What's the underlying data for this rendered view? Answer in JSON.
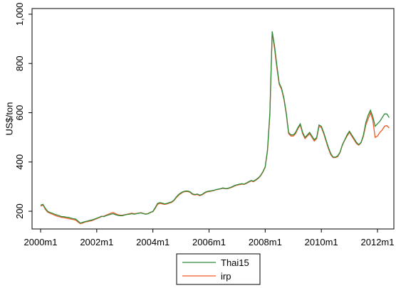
{
  "chart_data": {
    "type": "line",
    "y_label": "US$/ton",
    "x": [
      "2000m1",
      "2000m2",
      "2000m3",
      "2000m4",
      "2000m5",
      "2000m6",
      "2000m7",
      "2000m8",
      "2000m9",
      "2000m10",
      "2000m11",
      "2000m12",
      "2001m1",
      "2001m2",
      "2001m3",
      "2001m4",
      "2001m5",
      "2001m6",
      "2001m7",
      "2001m8",
      "2001m9",
      "2001m10",
      "2001m11",
      "2001m12",
      "2002m1",
      "2002m2",
      "2002m3",
      "2002m4",
      "2002m5",
      "2002m6",
      "2002m7",
      "2002m8",
      "2002m9",
      "2002m10",
      "2002m11",
      "2002m12",
      "2003m1",
      "2003m2",
      "2003m3",
      "2003m4",
      "2003m5",
      "2003m6",
      "2003m7",
      "2003m8",
      "2003m9",
      "2003m10",
      "2003m11",
      "2003m12",
      "2004m1",
      "2004m2",
      "2004m3",
      "2004m4",
      "2004m5",
      "2004m6",
      "2004m7",
      "2004m8",
      "2004m9",
      "2004m10",
      "2004m11",
      "2004m12",
      "2005m1",
      "2005m2",
      "2005m3",
      "2005m4",
      "2005m5",
      "2005m6",
      "2005m7",
      "2005m8",
      "2005m9",
      "2005m10",
      "2005m11",
      "2005m12",
      "2006m1",
      "2006m2",
      "2006m3",
      "2006m4",
      "2006m5",
      "2006m6",
      "2006m7",
      "2006m8",
      "2006m9",
      "2006m10",
      "2006m11",
      "2006m12",
      "2007m1",
      "2007m2",
      "2007m3",
      "2007m4",
      "2007m5",
      "2007m6",
      "2007m7",
      "2007m8",
      "2007m9",
      "2007m10",
      "2007m11",
      "2007m12",
      "2008m1",
      "2008m2",
      "2008m3",
      "2008m4",
      "2008m5",
      "2008m6",
      "2008m7",
      "2008m8",
      "2008m9",
      "2008m10",
      "2008m11",
      "2008m12",
      "2009m1",
      "2009m2",
      "2009m3",
      "2009m4",
      "2009m5",
      "2009m6",
      "2009m7",
      "2009m8",
      "2009m9",
      "2009m10",
      "2009m11",
      "2009m12",
      "2010m1",
      "2010m2",
      "2010m3",
      "2010m4",
      "2010m5",
      "2010m6",
      "2010m7",
      "2010m8",
      "2010m9",
      "2010m10",
      "2010m11",
      "2010m12",
      "2011m1",
      "2011m2",
      "2011m3",
      "2011m4",
      "2011m5",
      "2011m6",
      "2011m7",
      "2011m8",
      "2011m9",
      "2011m10",
      "2011m11",
      "2011m12",
      "2012m1",
      "2012m2",
      "2012m3",
      "2012m4",
      "2012m5",
      "2012m6"
    ],
    "xticks": [
      "2000m1",
      "2002m1",
      "2004m1",
      "2006m1",
      "2008m1",
      "2010m1",
      "2012m1"
    ],
    "series": [
      {
        "name": "Thai15",
        "color": "#2e8b3a",
        "values": [
          225,
          228,
          212,
          200,
          195,
          192,
          188,
          185,
          182,
          178,
          178,
          176,
          175,
          172,
          170,
          168,
          160,
          152,
          155,
          158,
          160,
          163,
          165,
          168,
          172,
          175,
          180,
          178,
          182,
          185,
          188,
          190,
          186,
          183,
          182,
          182,
          185,
          187,
          188,
          190,
          188,
          190,
          192,
          193,
          190,
          188,
          190,
          195,
          200,
          215,
          232,
          235,
          233,
          230,
          232,
          235,
          238,
          245,
          258,
          268,
          275,
          280,
          282,
          282,
          278,
          270,
          268,
          270,
          265,
          268,
          275,
          280,
          282,
          283,
          285,
          288,
          290,
          292,
          295,
          292,
          293,
          296,
          300,
          305,
          308,
          310,
          312,
          310,
          315,
          320,
          325,
          322,
          328,
          335,
          345,
          360,
          380,
          450,
          600,
          930,
          870,
          790,
          720,
          700,
          660,
          600,
          520,
          510,
          510,
          520,
          540,
          555,
          520,
          500,
          510,
          520,
          505,
          490,
          500,
          550,
          545,
          520,
          490,
          460,
          435,
          420,
          420,
          425,
          440,
          470,
          490,
          510,
          525,
          510,
          495,
          480,
          470,
          480,
          510,
          560,
          590,
          610,
          585,
          545,
          555,
          565,
          580,
          595,
          595,
          580
        ]
      },
      {
        "name": "irp",
        "color": "#f05a28",
        "values": [
          220,
          226,
          208,
          196,
          192,
          188,
          184,
          180,
          178,
          175,
          174,
          172,
          170,
          168,
          166,
          164,
          156,
          150,
          152,
          156,
          158,
          160,
          162,
          166,
          170,
          174,
          178,
          180,
          184,
          188,
          192,
          195,
          190,
          186,
          184,
          184,
          186,
          188,
          190,
          192,
          190,
          191,
          193,
          194,
          191,
          189,
          191,
          196,
          198,
          212,
          228,
          232,
          230,
          228,
          230,
          233,
          236,
          243,
          255,
          265,
          272,
          278,
          280,
          280,
          276,
          268,
          266,
          268,
          263,
          266,
          273,
          278,
          280,
          282,
          284,
          287,
          289,
          291,
          293,
          291,
          292,
          295,
          298,
          303,
          306,
          308,
          310,
          309,
          313,
          318,
          323,
          320,
          326,
          333,
          343,
          358,
          378,
          445,
          590,
          925,
          860,
          780,
          715,
          695,
          655,
          595,
          515,
          505,
          505,
          515,
          535,
          550,
          515,
          495,
          505,
          515,
          500,
          485,
          495,
          545,
          540,
          515,
          485,
          455,
          430,
          418,
          418,
          422,
          438,
          468,
          488,
          505,
          520,
          505,
          490,
          475,
          468,
          478,
          505,
          550,
          575,
          600,
          570,
          500,
          505,
          520,
          530,
          545,
          548,
          538
        ]
      }
    ],
    "ylim": [
      128,
      1023
    ],
    "yticks": [
      200,
      400,
      600,
      800,
      {
        "value": 1000,
        "label": "1,000"
      }
    ]
  }
}
